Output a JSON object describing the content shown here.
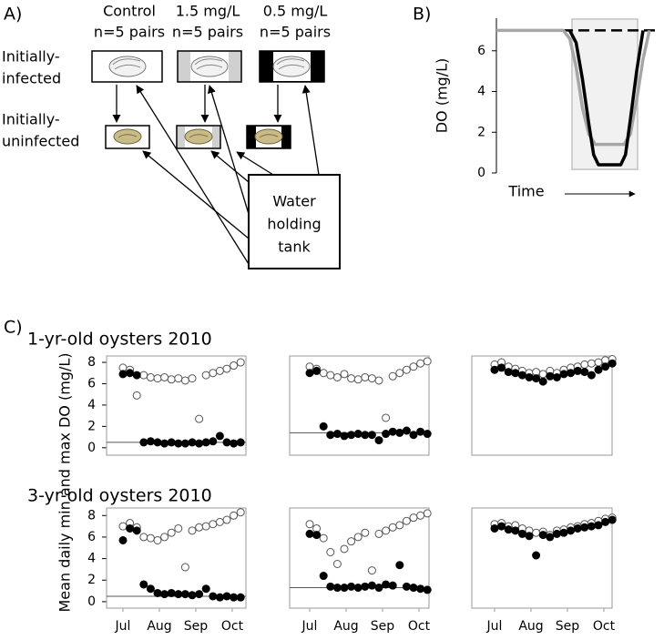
{
  "diagram": {
    "label": "A)",
    "columns": [
      {
        "label": "Control",
        "sub": "n=5 pairs"
      },
      {
        "label": "1.5 mg/L",
        "sub": "n=5 pairs"
      },
      {
        "label": "0.5 mg/L",
        "sub": "n=5  pairs"
      }
    ],
    "rows": [
      [
        "Initially-",
        "infected"
      ],
      [
        "Initially-",
        "uninfected"
      ]
    ],
    "tank": [
      "Water",
      "holding",
      "tank"
    ]
  },
  "panel_b_label": "B)",
  "panel_c": {
    "label": "C)",
    "row_titles": [
      "1-yr-old oysters 2010",
      "3-yr-old oysters 2010"
    ],
    "y_label": "Mean daily min and max DO (mg/L)"
  },
  "chart_data": [
    {
      "type": "line",
      "y_label": "DO (mg/L)",
      "x_label": "Time",
      "xlim": [
        0,
        10
      ],
      "ylim": [
        0,
        7.6
      ],
      "yticks": [
        0,
        2,
        4,
        6
      ],
      "series": [
        {
          "color": "#000000",
          "dash": true,
          "x": [
            0,
            10
          ],
          "values": [
            7,
            7
          ]
        },
        {
          "color": "#a6a6a6",
          "x": [
            0,
            4.2,
            4.6,
            5.0,
            5.4,
            5.8,
            6.2,
            8.0,
            8.4,
            8.8,
            9.2,
            9.6
          ],
          "values": [
            7,
            7,
            6.6,
            5.2,
            3.2,
            1.9,
            1.4,
            1.4,
            1.9,
            3.6,
            5.6,
            7
          ]
        },
        {
          "color": "#000000",
          "x": [
            4.6,
            5.0,
            5.4,
            5.8,
            6.1,
            6.4,
            7.8,
            8.1,
            8.4,
            8.8,
            9.2
          ],
          "values": [
            7,
            6.4,
            4.6,
            2.4,
            0.9,
            0.4,
            0.4,
            0.9,
            2.6,
            5.0,
            7
          ]
        }
      ]
    },
    {
      "type": "scatter",
      "threshold": 0.5,
      "xlim": [
        0.55,
        4.375
      ],
      "ylim": [
        -0.7,
        8.6
      ],
      "yticks": [
        0,
        2,
        4,
        6,
        8
      ],
      "x": [
        1.0,
        1.19,
        1.38,
        1.57,
        1.76,
        1.95,
        2.14,
        2.33,
        2.52,
        2.71,
        2.9,
        3.09,
        3.28,
        3.47,
        3.66,
        3.85,
        4.04,
        4.23
      ],
      "series": [
        {
          "color": "#555555",
          "fill": "#ffffff",
          "values": [
            7.5,
            7.3,
            4.9,
            6.8,
            6.6,
            6.5,
            6.6,
            6.4,
            6.5,
            6.3,
            6.5,
            2.7,
            6.8,
            7.0,
            7.2,
            7.4,
            7.7,
            8.0
          ]
        },
        {
          "color": "#000000",
          "fill": "#000000",
          "values": [
            6.9,
            7.0,
            6.8,
            0.5,
            0.6,
            0.5,
            0.4,
            0.5,
            0.4,
            0.4,
            0.5,
            0.4,
            0.5,
            0.6,
            1.1,
            0.5,
            0.4,
            0.5
          ]
        }
      ]
    },
    {
      "type": "scatter",
      "threshold": 1.4,
      "xlim": [
        0.45,
        4.275
      ],
      "ylim": [
        -0.7,
        8.6
      ],
      "x": [
        1.0,
        1.19,
        1.38,
        1.57,
        1.76,
        1.95,
        2.14,
        2.33,
        2.52,
        2.71,
        2.9,
        3.09,
        3.28,
        3.47,
        3.66,
        3.85,
        4.04,
        4.23
      ],
      "series": [
        {
          "color": "#555555",
          "fill": "#ffffff",
          "values": [
            7.6,
            7.4,
            7.0,
            6.8,
            6.6,
            6.9,
            6.5,
            6.4,
            6.6,
            6.5,
            6.3,
            2.8,
            6.7,
            7.0,
            7.3,
            7.6,
            7.9,
            8.1
          ]
        },
        {
          "color": "#000000",
          "fill": "#000000",
          "values": [
            7.0,
            7.2,
            2.0,
            1.2,
            1.3,
            1.1,
            1.2,
            1.3,
            1.2,
            1.2,
            0.7,
            1.3,
            1.5,
            1.4,
            1.6,
            1.2,
            1.5,
            1.3
          ]
        }
      ]
    },
    {
      "type": "scatter",
      "xlim": [
        0.375,
        4.225
      ],
      "ylim": [
        -0.7,
        8.6
      ],
      "x": [
        1.0,
        1.19,
        1.38,
        1.57,
        1.76,
        1.95,
        2.14,
        2.33,
        2.52,
        2.71,
        2.9,
        3.09,
        3.28,
        3.47,
        3.66,
        3.85,
        4.04,
        4.23
      ],
      "series": [
        {
          "color": "#555555",
          "fill": "#ffffff",
          "values": [
            7.8,
            8.0,
            7.6,
            7.4,
            7.2,
            7.0,
            7.1,
            6.9,
            7.2,
            7.0,
            7.3,
            7.5,
            7.6,
            7.8,
            7.9,
            8.0,
            8.2,
            8.3
          ]
        },
        {
          "color": "#000000",
          "fill": "#000000",
          "values": [
            7.3,
            7.5,
            7.1,
            7.0,
            6.8,
            6.6,
            6.5,
            6.2,
            6.7,
            6.6,
            6.9,
            7.0,
            7.2,
            7.1,
            6.8,
            7.3,
            7.6,
            7.9
          ]
        }
      ]
    },
    {
      "type": "scatter",
      "threshold": 0.5,
      "xlim": [
        0.55,
        4.375
      ],
      "ylim": [
        -0.6,
        8.7
      ],
      "yticks": [
        0,
        2,
        4,
        6,
        8
      ],
      "xticks": [
        {
          "value": 1,
          "label": "Jul"
        },
        {
          "value": 2,
          "label": "Aug"
        },
        {
          "value": 3,
          "label": "Sep"
        },
        {
          "value": 4,
          "label": "Oct"
        }
      ],
      "x": [
        1.0,
        1.19,
        1.38,
        1.57,
        1.76,
        1.95,
        2.14,
        2.33,
        2.52,
        2.71,
        2.9,
        3.09,
        3.28,
        3.47,
        3.66,
        3.85,
        4.04,
        4.23
      ],
      "series": [
        {
          "color": "#555555",
          "fill": "#ffffff",
          "values": [
            7.0,
            7.3,
            6.9,
            6.0,
            5.9,
            5.7,
            6.0,
            6.4,
            6.8,
            3.2,
            6.6,
            6.9,
            7.0,
            7.2,
            7.4,
            7.6,
            8.0,
            8.3
          ]
        },
        {
          "color": "#000000",
          "fill": "#000000",
          "values": [
            5.7,
            6.8,
            6.6,
            1.6,
            1.2,
            0.8,
            0.7,
            0.8,
            0.7,
            0.7,
            0.6,
            0.7,
            1.2,
            0.5,
            0.4,
            0.5,
            0.4,
            0.4
          ]
        }
      ]
    },
    {
      "type": "scatter",
      "threshold": 1.3,
      "xlim": [
        0.45,
        4.275
      ],
      "ylim": [
        -0.6,
        8.7
      ],
      "xticks": [
        {
          "value": 1,
          "label": "Jul"
        },
        {
          "value": 2,
          "label": "Aug"
        },
        {
          "value": 3,
          "label": "Sep"
        },
        {
          "value": 4,
          "label": "Oct"
        }
      ],
      "x": [
        1.0,
        1.19,
        1.38,
        1.57,
        1.76,
        1.95,
        2.14,
        2.33,
        2.52,
        2.71,
        2.9,
        3.09,
        3.28,
        3.47,
        3.66,
        3.85,
        4.04,
        4.23
      ],
      "series": [
        {
          "color": "#555555",
          "fill": "#ffffff",
          "values": [
            7.2,
            6.8,
            5.9,
            4.6,
            3.5,
            4.9,
            5.6,
            6.0,
            6.4,
            2.9,
            6.3,
            6.6,
            6.9,
            7.1,
            7.5,
            7.8,
            8.0,
            8.2
          ]
        },
        {
          "color": "#000000",
          "fill": "#000000",
          "values": [
            6.3,
            6.2,
            2.4,
            1.4,
            1.3,
            1.3,
            1.4,
            1.3,
            1.4,
            1.5,
            1.3,
            1.6,
            1.5,
            3.4,
            1.4,
            1.3,
            1.2,
            1.1
          ]
        }
      ]
    },
    {
      "type": "scatter",
      "xlim": [
        0.375,
        4.225
      ],
      "ylim": [
        -0.6,
        8.7
      ],
      "xticks": [
        {
          "value": 1,
          "label": "Jul"
        },
        {
          "value": 2,
          "label": "Aug"
        },
        {
          "value": 3,
          "label": "Sep"
        },
        {
          "value": 4,
          "label": "Oct"
        }
      ],
      "x": [
        1.0,
        1.19,
        1.38,
        1.57,
        1.76,
        1.95,
        2.14,
        2.33,
        2.52,
        2.71,
        2.9,
        3.09,
        3.28,
        3.47,
        3.66,
        3.85,
        4.04,
        4.23
      ],
      "series": [
        {
          "color": "#555555",
          "fill": "#ffffff",
          "values": [
            7.2,
            7.3,
            7.0,
            7.1,
            6.8,
            6.6,
            6.4,
            6.5,
            6.2,
            6.6,
            6.7,
            6.9,
            7.0,
            7.2,
            7.3,
            7.5,
            7.7,
            7.8
          ]
        },
        {
          "color": "#000000",
          "fill": "#000000",
          "values": [
            6.8,
            7.0,
            6.7,
            6.6,
            6.3,
            6.1,
            4.3,
            6.2,
            6.0,
            6.3,
            6.4,
            6.6,
            6.8,
            6.9,
            7.0,
            7.1,
            7.4,
            7.6
          ]
        }
      ]
    }
  ]
}
